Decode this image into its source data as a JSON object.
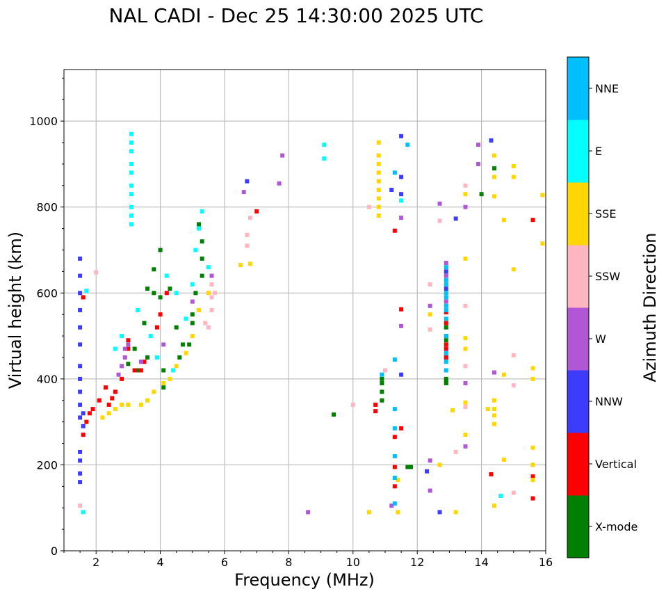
{
  "chart_data": {
    "type": "scatter",
    "title": "NAL CADI - Dec 25 14:30:00 2025 UTC",
    "xlabel": "Frequency (MHz)",
    "ylabel": "Virtual height (km)",
    "xlim": [
      1,
      16
    ],
    "ylim": [
      0,
      1120
    ],
    "xticks": [
      2,
      4,
      6,
      8,
      10,
      12,
      14,
      16
    ],
    "yticks": [
      0,
      200,
      400,
      600,
      800,
      1000
    ],
    "grid": true,
    "colorbar": {
      "label": "Azimuth Direction",
      "categories": [
        {
          "name": "X-mode",
          "color": "#008000"
        },
        {
          "name": "Vertical",
          "color": "#ff0000"
        },
        {
          "name": "NNW",
          "color": "#3c3cff"
        },
        {
          "name": "W",
          "color": "#b057d6"
        },
        {
          "name": "SSW",
          "color": "#ffb6c1"
        },
        {
          "name": "SSE",
          "color": "#ffd700"
        },
        {
          "name": "E",
          "color": "#00ffff"
        },
        {
          "name": "NNE",
          "color": "#00bfff"
        }
      ]
    },
    "series": [
      {
        "name": "X-mode",
        "points": [
          [
            3.5,
            530
          ],
          [
            3.6,
            610
          ],
          [
            3.8,
            655
          ],
          [
            4.0,
            700
          ],
          [
            4.0,
            590
          ],
          [
            3.2,
            470
          ],
          [
            3.6,
            450
          ],
          [
            4.1,
            380
          ],
          [
            4.6,
            450
          ],
          [
            4.9,
            480
          ],
          [
            5.0,
            530
          ],
          [
            5.1,
            600
          ],
          [
            5.3,
            680
          ],
          [
            5.2,
            760
          ],
          [
            4.1,
            420
          ],
          [
            3.3,
            420
          ],
          [
            3.0,
            435
          ],
          [
            4.5,
            520
          ],
          [
            5.3,
            640
          ],
          [
            5.3,
            720
          ],
          [
            10.9,
            350
          ],
          [
            10.9,
            370
          ],
          [
            10.9,
            390
          ],
          [
            10.9,
            400
          ],
          [
            12.9,
            390
          ],
          [
            12.9,
            395
          ],
          [
            12.9,
            400
          ],
          [
            12.9,
            490
          ],
          [
            12.9,
            500
          ],
          [
            12.9,
            520
          ],
          [
            14.0,
            830
          ],
          [
            14.4,
            890
          ],
          [
            9.4,
            317
          ],
          [
            11.8,
            195
          ],
          [
            11.7,
            195
          ],
          [
            3.8,
            600
          ],
          [
            4.3,
            610
          ],
          [
            4.7,
            480
          ],
          [
            5.0,
            550
          ]
        ]
      },
      {
        "name": "Vertical",
        "points": [
          [
            1.8,
            320
          ],
          [
            1.9,
            330
          ],
          [
            2.1,
            350
          ],
          [
            2.3,
            380
          ],
          [
            2.4,
            340
          ],
          [
            2.6,
            370
          ],
          [
            2.8,
            400
          ],
          [
            3.0,
            470
          ],
          [
            3.0,
            490
          ],
          [
            3.2,
            420
          ],
          [
            3.5,
            440
          ],
          [
            3.9,
            520
          ],
          [
            4.0,
            550
          ],
          [
            4.2,
            600
          ],
          [
            1.6,
            270
          ],
          [
            1.7,
            300
          ],
          [
            2.5,
            355
          ],
          [
            3.4,
            420
          ],
          [
            10.7,
            340
          ],
          [
            10.7,
            325
          ],
          [
            11.3,
            150
          ],
          [
            11.3,
            195
          ],
          [
            11.3,
            265
          ],
          [
            11.5,
            285
          ],
          [
            11.5,
            562
          ],
          [
            11.3,
            745
          ],
          [
            12.9,
            450
          ],
          [
            12.9,
            470
          ],
          [
            12.9,
            480
          ],
          [
            12.9,
            530
          ],
          [
            12.9,
            555
          ],
          [
            15.6,
            122
          ],
          [
            15.6,
            173
          ],
          [
            15.6,
            770
          ],
          [
            14.3,
            178
          ],
          [
            7.0,
            790
          ],
          [
            1.6,
            590
          ]
        ]
      },
      {
        "name": "NNW",
        "points": [
          [
            1.5,
            160
          ],
          [
            1.5,
            180
          ],
          [
            1.5,
            210
          ],
          [
            1.5,
            230
          ],
          [
            1.5,
            310
          ],
          [
            1.5,
            340
          ],
          [
            1.5,
            370
          ],
          [
            1.5,
            400
          ],
          [
            1.5,
            430
          ],
          [
            1.5,
            480
          ],
          [
            1.5,
            520
          ],
          [
            1.5,
            560
          ],
          [
            1.5,
            600
          ],
          [
            1.5,
            640
          ],
          [
            1.5,
            680
          ],
          [
            1.6,
            290
          ],
          [
            1.6,
            320
          ],
          [
            6.7,
            860
          ],
          [
            11.5,
            965
          ],
          [
            11.5,
            870
          ],
          [
            11.5,
            830
          ],
          [
            11.2,
            840
          ],
          [
            11.5,
            410
          ],
          [
            12.3,
            185
          ],
          [
            12.7,
            90
          ],
          [
            13.2,
            773
          ],
          [
            14.3,
            955
          ],
          [
            12.9,
            610
          ],
          [
            12.9,
            650
          ]
        ]
      },
      {
        "name": "W",
        "points": [
          [
            2.9,
            470
          ],
          [
            3.0,
            480
          ],
          [
            2.9,
            450
          ],
          [
            2.8,
            430
          ],
          [
            2.7,
            410
          ],
          [
            3.4,
            440
          ],
          [
            4.1,
            480
          ],
          [
            5.0,
            580
          ],
          [
            5.2,
            560
          ],
          [
            5.6,
            640
          ],
          [
            6.6,
            835
          ],
          [
            7.8,
            920
          ],
          [
            7.7,
            855
          ],
          [
            8.6,
            90
          ],
          [
            11.5,
            523
          ],
          [
            11.5,
            775
          ],
          [
            12.4,
            570
          ],
          [
            12.4,
            140
          ],
          [
            12.4,
            210
          ],
          [
            12.7,
            808
          ],
          [
            13.5,
            800
          ],
          [
            13.5,
            390
          ],
          [
            13.5,
            243
          ],
          [
            13.9,
            945
          ],
          [
            13.9,
            900
          ],
          [
            14.4,
            415
          ],
          [
            12.9,
            670
          ],
          [
            12.9,
            640
          ],
          [
            12.9,
            580
          ],
          [
            11.2,
            105
          ]
        ]
      },
      {
        "name": "SSW",
        "points": [
          [
            1.5,
            105
          ],
          [
            2.0,
            648
          ],
          [
            5.5,
            520
          ],
          [
            5.6,
            560
          ],
          [
            5.6,
            590
          ],
          [
            5.6,
            620
          ],
          [
            5.4,
            530
          ],
          [
            5.7,
            600
          ],
          [
            6.7,
            735
          ],
          [
            6.7,
            710
          ],
          [
            6.8,
            775
          ],
          [
            10.0,
            340
          ],
          [
            10.5,
            800
          ],
          [
            11.0,
            420
          ],
          [
            12.4,
            515
          ],
          [
            12.4,
            620
          ],
          [
            12.7,
            768
          ],
          [
            12.7,
            200
          ],
          [
            13.2,
            230
          ],
          [
            13.5,
            570
          ],
          [
            13.5,
            850
          ],
          [
            13.5,
            430
          ],
          [
            13.5,
            335
          ],
          [
            15.0,
            135
          ],
          [
            15.0,
            385
          ],
          [
            15.0,
            455
          ]
        ]
      },
      {
        "name": "SSE",
        "points": [
          [
            2.2,
            310
          ],
          [
            2.4,
            320
          ],
          [
            2.6,
            330
          ],
          [
            2.8,
            340
          ],
          [
            3.0,
            340
          ],
          [
            3.4,
            340
          ],
          [
            3.6,
            350
          ],
          [
            3.8,
            370
          ],
          [
            4.1,
            390
          ],
          [
            4.3,
            400
          ],
          [
            4.5,
            430
          ],
          [
            4.8,
            460
          ],
          [
            5.0,
            500
          ],
          [
            5.2,
            560
          ],
          [
            5.5,
            600
          ],
          [
            6.5,
            665
          ],
          [
            6.8,
            668
          ],
          [
            10.8,
            780
          ],
          [
            10.8,
            800
          ],
          [
            10.8,
            820
          ],
          [
            10.8,
            840
          ],
          [
            10.8,
            860
          ],
          [
            10.8,
            880
          ],
          [
            10.8,
            900
          ],
          [
            10.8,
            920
          ],
          [
            10.8,
            950
          ],
          [
            10.5,
            90
          ],
          [
            11.4,
            90
          ],
          [
            11.4,
            165
          ],
          [
            12.4,
            550
          ],
          [
            12.7,
            200
          ],
          [
            13.1,
            327
          ],
          [
            13.2,
            90
          ],
          [
            13.5,
            680
          ],
          [
            13.5,
            495
          ],
          [
            13.5,
            470
          ],
          [
            13.5,
            345
          ],
          [
            13.5,
            270
          ],
          [
            13.5,
            830
          ],
          [
            14.4,
            920
          ],
          [
            14.4,
            870
          ],
          [
            14.4,
            825
          ],
          [
            14.4,
            350
          ],
          [
            14.4,
            330
          ],
          [
            14.4,
            315
          ],
          [
            14.4,
            295
          ],
          [
            14.4,
            105
          ],
          [
            14.7,
            770
          ],
          [
            14.7,
            410
          ],
          [
            14.7,
            212
          ],
          [
            15.0,
            895
          ],
          [
            15.0,
            870
          ],
          [
            15.0,
            655
          ],
          [
            15.6,
            425
          ],
          [
            15.6,
            400
          ],
          [
            15.6,
            240
          ],
          [
            15.6,
            200
          ],
          [
            15.6,
            165
          ],
          [
            15.9,
            828
          ],
          [
            15.9,
            715
          ],
          [
            14.2,
            330
          ]
        ]
      },
      {
        "name": "E",
        "points": [
          [
            1.6,
            90
          ],
          [
            1.7,
            605
          ],
          [
            2.6,
            470
          ],
          [
            2.8,
            500
          ],
          [
            3.1,
            760
          ],
          [
            3.1,
            780
          ],
          [
            3.1,
            800
          ],
          [
            3.1,
            830
          ],
          [
            3.1,
            850
          ],
          [
            3.1,
            880
          ],
          [
            3.1,
            900
          ],
          [
            3.1,
            930
          ],
          [
            3.1,
            950
          ],
          [
            3.1,
            970
          ],
          [
            3.3,
            560
          ],
          [
            3.7,
            500
          ],
          [
            4.2,
            640
          ],
          [
            4.5,
            600
          ],
          [
            4.8,
            540
          ],
          [
            5.0,
            620
          ],
          [
            5.1,
            700
          ],
          [
            5.2,
            750
          ],
          [
            5.3,
            790
          ],
          [
            5.5,
            660
          ],
          [
            9.1,
            945
          ],
          [
            9.1,
            913
          ],
          [
            11.5,
            815
          ],
          [
            14.6,
            128
          ],
          [
            4.4,
            420
          ],
          [
            3.9,
            450
          ]
        ]
      },
      {
        "name": "NNE",
        "points": [
          [
            10.9,
            410
          ],
          [
            11.3,
            445
          ],
          [
            11.3,
            330
          ],
          [
            11.3,
            285
          ],
          [
            11.3,
            220
          ],
          [
            11.3,
            170
          ],
          [
            11.3,
            110
          ],
          [
            11.3,
            880
          ],
          [
            11.7,
            945
          ],
          [
            12.9,
            420
          ],
          [
            12.9,
            440
          ],
          [
            12.9,
            460
          ],
          [
            12.9,
            500
          ],
          [
            12.9,
            540
          ],
          [
            12.9,
            560
          ],
          [
            12.9,
            570
          ],
          [
            12.9,
            590
          ],
          [
            12.9,
            600
          ],
          [
            12.9,
            620
          ],
          [
            12.9,
            630
          ],
          [
            12.9,
            660
          ]
        ]
      }
    ]
  }
}
